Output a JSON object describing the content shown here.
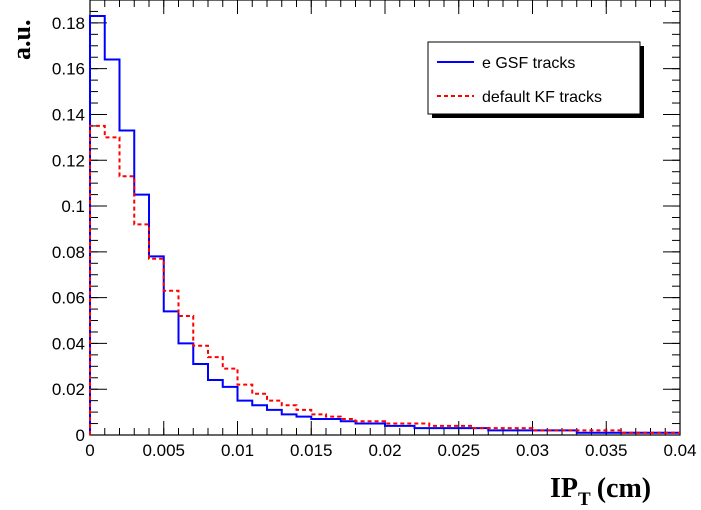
{
  "chart_data": {
    "type": "line",
    "step": true,
    "xlabel_main": "IP",
    "xlabel_sub": "T",
    "xlabel_unit": "(cm)",
    "ylabel": "a.u.",
    "xlim": [
      0,
      0.04
    ],
    "ylim": [
      0,
      0.19
    ],
    "x_ticks": [
      "0",
      "0.005",
      "0.01",
      "0.015",
      "0.02",
      "0.025",
      "0.03",
      "0.035",
      "0.04"
    ],
    "y_ticks": [
      "0",
      "0.02",
      "0.04",
      "0.06",
      "0.08",
      "0.1",
      "0.12",
      "0.14",
      "0.16",
      "0.18"
    ],
    "bin_edges": [
      0,
      0.001,
      0.002,
      0.003,
      0.004,
      0.005,
      0.006,
      0.007,
      0.008,
      0.009,
      0.01,
      0.011,
      0.012,
      0.013,
      0.014,
      0.015,
      0.016,
      0.017,
      0.018,
      0.019,
      0.02,
      0.021,
      0.022,
      0.023,
      0.024,
      0.025,
      0.026,
      0.027,
      0.028,
      0.029,
      0.03,
      0.031,
      0.032,
      0.033,
      0.034,
      0.035,
      0.036,
      0.037,
      0.038,
      0.039,
      0.04
    ],
    "legend_position": "top-right",
    "series": [
      {
        "name": "e GSF tracks",
        "color": "#0000ff",
        "dash": "solid",
        "values": [
          0.183,
          0.164,
          0.133,
          0.105,
          0.078,
          0.054,
          0.04,
          0.031,
          0.024,
          0.021,
          0.015,
          0.013,
          0.011,
          0.009,
          0.008,
          0.007,
          0.007,
          0.006,
          0.005,
          0.005,
          0.004,
          0.004,
          0.003,
          0.003,
          0.003,
          0.003,
          0.003,
          0.002,
          0.002,
          0.002,
          0.002,
          0.002,
          0.002,
          0.001,
          0.001,
          0.001,
          0.001,
          0.001,
          0.001,
          0.001
        ]
      },
      {
        "name": "default KF tracks",
        "color": "#ff0000",
        "dash": "dashed",
        "values": [
          0.135,
          0.13,
          0.113,
          0.092,
          0.077,
          0.063,
          0.052,
          0.039,
          0.034,
          0.029,
          0.022,
          0.018,
          0.015,
          0.013,
          0.011,
          0.009,
          0.008,
          0.007,
          0.006,
          0.006,
          0.005,
          0.005,
          0.005,
          0.004,
          0.004,
          0.004,
          0.003,
          0.003,
          0.003,
          0.003,
          0.002,
          0.002,
          0.002,
          0.002,
          0.002,
          0.002,
          0.001,
          0.001,
          0.001,
          0.001
        ]
      }
    ]
  }
}
